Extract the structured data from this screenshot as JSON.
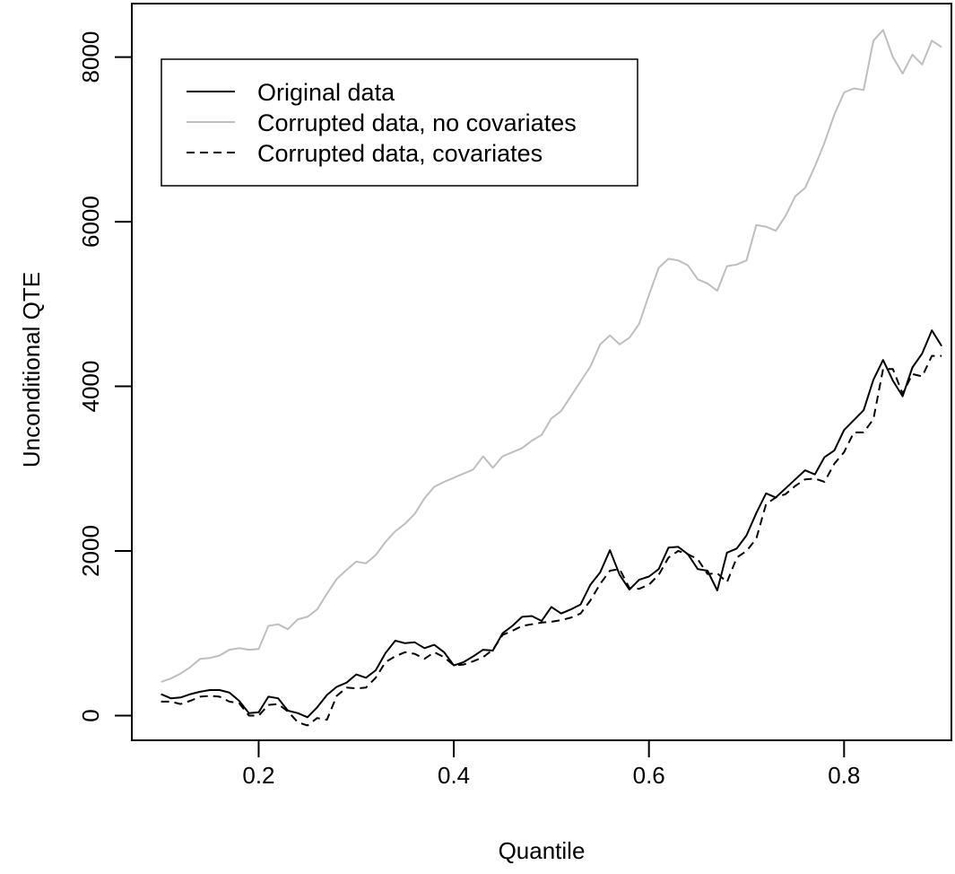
{
  "chart_data": {
    "type": "line",
    "title": "",
    "xlabel": "Quantile",
    "ylabel": "Unconditional QTE",
    "xlim": [
      0.07,
      0.91
    ],
    "ylim": [
      -300,
      8650
    ],
    "x_ticks": [
      0.2,
      0.4,
      0.6,
      0.8
    ],
    "x_tick_labels": [
      "0.2",
      "0.4",
      "0.6",
      "0.8"
    ],
    "y_ticks": [
      0,
      2000,
      4000,
      6000,
      8000
    ],
    "y_tick_labels": [
      "0",
      "2000",
      "4000",
      "6000",
      "8000"
    ],
    "grid": false,
    "legend_position": "top-left",
    "x": [
      0.1,
      0.11,
      0.12,
      0.13,
      0.14,
      0.15,
      0.16,
      0.17,
      0.18,
      0.19,
      0.2,
      0.21,
      0.22,
      0.23,
      0.24,
      0.25,
      0.26,
      0.27,
      0.28,
      0.29,
      0.3,
      0.31,
      0.32,
      0.33,
      0.34,
      0.35,
      0.36,
      0.37,
      0.38,
      0.39,
      0.4,
      0.41,
      0.42,
      0.43,
      0.44,
      0.45,
      0.46,
      0.47,
      0.48,
      0.49,
      0.5,
      0.51,
      0.52,
      0.53,
      0.54,
      0.55,
      0.56,
      0.57,
      0.58,
      0.59,
      0.6,
      0.61,
      0.62,
      0.63,
      0.64,
      0.65,
      0.66,
      0.67,
      0.68,
      0.69,
      0.7,
      0.71,
      0.72,
      0.73,
      0.74,
      0.75,
      0.76,
      0.77,
      0.78,
      0.79,
      0.8,
      0.81,
      0.82,
      0.83,
      0.84,
      0.85,
      0.86,
      0.87,
      0.88,
      0.89,
      0.9
    ],
    "series": [
      {
        "name": "Original data",
        "color": "#000000",
        "dash": "solid",
        "values": [
          260,
          210,
          220,
          260,
          290,
          310,
          310,
          280,
          180,
          30,
          40,
          230,
          210,
          60,
          30,
          -20,
          100,
          250,
          350,
          400,
          500,
          460,
          550,
          760,
          910,
          880,
          890,
          820,
          860,
          770,
          610,
          650,
          720,
          800,
          790,
          1000,
          1090,
          1200,
          1210,
          1150,
          1320,
          1240,
          1290,
          1350,
          1590,
          1740,
          2010,
          1710,
          1530,
          1650,
          1690,
          1780,
          2040,
          2050,
          1960,
          1780,
          1760,
          1520,
          1980,
          2030,
          2190,
          2460,
          2700,
          2650,
          2760,
          2870,
          2980,
          2930,
          3140,
          3220,
          3470,
          3590,
          3710,
          4080,
          4320,
          4070,
          3880,
          4230,
          4400,
          4680,
          4490
        ]
      },
      {
        "name": "Corrupted data, no covariates",
        "color": "#bebebe",
        "dash": "solid",
        "values": [
          410,
          450,
          510,
          590,
          690,
          700,
          730,
          800,
          820,
          800,
          810,
          1090,
          1110,
          1050,
          1170,
          1200,
          1290,
          1480,
          1660,
          1770,
          1870,
          1850,
          1950,
          2110,
          2240,
          2330,
          2450,
          2640,
          2780,
          2840,
          2890,
          2940,
          2990,
          3150,
          3010,
          3150,
          3200,
          3250,
          3340,
          3410,
          3610,
          3700,
          3880,
          4060,
          4240,
          4510,
          4620,
          4510,
          4590,
          4760,
          5110,
          5440,
          5550,
          5530,
          5470,
          5300,
          5250,
          5160,
          5460,
          5480,
          5530,
          5960,
          5940,
          5890,
          6070,
          6310,
          6410,
          6670,
          6960,
          7300,
          7570,
          7620,
          7600,
          8200,
          8330,
          8000,
          7800,
          8030,
          7910,
          8200,
          8120
        ]
      },
      {
        "name": "Corrupted data, covariates",
        "color": "#000000",
        "dash": "dashed",
        "values": [
          170,
          170,
          140,
          180,
          230,
          240,
          230,
          170,
          150,
          0,
          0,
          130,
          140,
          50,
          -80,
          -120,
          -30,
          -50,
          240,
          340,
          330,
          340,
          460,
          650,
          720,
          770,
          750,
          690,
          770,
          710,
          610,
          620,
          660,
          710,
          800,
          980,
          1030,
          1090,
          1110,
          1130,
          1140,
          1160,
          1190,
          1240,
          1400,
          1600,
          1760,
          1780,
          1550,
          1540,
          1590,
          1710,
          1920,
          2000,
          1960,
          1900,
          1720,
          1730,
          1620,
          1920,
          2000,
          2150,
          2570,
          2650,
          2690,
          2790,
          2870,
          2880,
          2840,
          3060,
          3200,
          3440,
          3440,
          3600,
          4210,
          4210,
          3910,
          4150,
          4120,
          4370,
          4370
        ]
      }
    ]
  }
}
